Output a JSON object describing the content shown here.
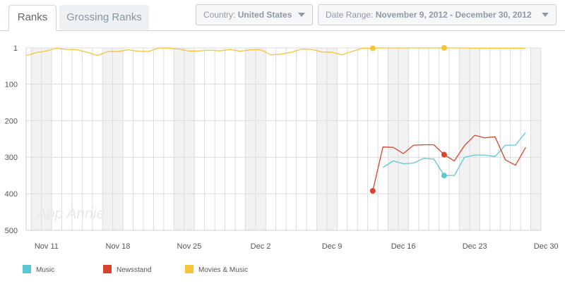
{
  "tabs": {
    "ranks": "Ranks",
    "grossing": "Grossing Ranks"
  },
  "filters": {
    "country_label": "Country:",
    "country_value": "United States",
    "date_label": "Date Range:",
    "date_value": "November 9, 2012 - December 30, 2012"
  },
  "watermark": "App Annie",
  "colors": {
    "music": "#5bc8d4",
    "newsstand": "#d9432b",
    "movies_music": "#f7c43a",
    "band": "#f2f2f2",
    "grid": "#dcdcdc"
  },
  "chart_data": {
    "type": "line",
    "title": "",
    "xlabel": "",
    "ylabel": "",
    "x_start": "2012-11-09",
    "x_end": "2012-12-30",
    "yticks": [
      1,
      100,
      200,
      300,
      400,
      500
    ],
    "ylim": [
      1,
      500
    ],
    "y_reversed": true,
    "xticks": [
      {
        "label": "Nov 11",
        "date": "2012-11-11"
      },
      {
        "label": "Nov 18",
        "date": "2012-11-18"
      },
      {
        "label": "Nov 25",
        "date": "2012-11-25"
      },
      {
        "label": "Dec 2",
        "date": "2012-12-02"
      },
      {
        "label": "Dec 9",
        "date": "2012-12-09"
      },
      {
        "label": "Dec 16",
        "date": "2012-12-16"
      },
      {
        "label": "Dec 23",
        "date": "2012-12-23"
      },
      {
        "label": "Dec 30",
        "date": "2012-12-30"
      }
    ],
    "legend_position": "bottom-left",
    "series": [
      {
        "name": "Music",
        "color": "#5bc8d4",
        "points": [
          [
            "2012-12-14",
            328
          ],
          [
            "2012-12-15",
            310
          ],
          [
            "2012-12-16",
            318
          ],
          [
            "2012-12-17",
            316
          ],
          [
            "2012-12-18",
            303
          ],
          [
            "2012-12-19",
            305
          ],
          [
            "2012-12-20",
            350
          ],
          [
            "2012-12-21",
            350
          ],
          [
            "2012-12-22",
            300
          ],
          [
            "2012-12-23",
            294
          ],
          [
            "2012-12-24",
            294
          ],
          [
            "2012-12-25",
            298
          ],
          [
            "2012-12-26",
            267
          ],
          [
            "2012-12-27",
            267
          ],
          [
            "2012-12-28",
            232
          ]
        ],
        "markers": [
          [
            "2012-12-20",
            350
          ]
        ]
      },
      {
        "name": "Newsstand",
        "color": "#d9432b",
        "points": [
          [
            "2012-12-13",
            392
          ],
          [
            "2012-12-14",
            272
          ],
          [
            "2012-12-15",
            273
          ],
          [
            "2012-12-16",
            290
          ],
          [
            "2012-12-17",
            267
          ],
          [
            "2012-12-18",
            266
          ],
          [
            "2012-12-19",
            266
          ],
          [
            "2012-12-20",
            293
          ],
          [
            "2012-12-21",
            310
          ],
          [
            "2012-12-22",
            268
          ],
          [
            "2012-12-23",
            240
          ],
          [
            "2012-12-24",
            247
          ],
          [
            "2012-12-25",
            244
          ],
          [
            "2012-12-26",
            307
          ],
          [
            "2012-12-27",
            322
          ],
          [
            "2012-12-28",
            273
          ]
        ],
        "markers": [
          [
            "2012-12-13",
            392
          ],
          [
            "2012-12-20",
            293
          ]
        ]
      },
      {
        "name": "Movies & Music",
        "color": "#f7c43a",
        "points": [
          [
            "2012-11-09",
            22
          ],
          [
            "2012-11-10",
            14
          ],
          [
            "2012-11-11",
            9
          ],
          [
            "2012-11-12",
            2
          ],
          [
            "2012-11-13",
            5
          ],
          [
            "2012-11-14",
            6
          ],
          [
            "2012-11-15",
            13
          ],
          [
            "2012-11-16",
            22
          ],
          [
            "2012-11-17",
            11
          ],
          [
            "2012-11-18",
            11
          ],
          [
            "2012-11-19",
            6
          ],
          [
            "2012-11-20",
            10
          ],
          [
            "2012-11-21",
            11
          ],
          [
            "2012-11-22",
            1
          ],
          [
            "2012-11-23",
            2
          ],
          [
            "2012-11-24",
            4
          ],
          [
            "2012-11-25",
            10
          ],
          [
            "2012-11-26",
            9
          ],
          [
            "2012-11-27",
            7
          ],
          [
            "2012-11-28",
            9
          ],
          [
            "2012-11-29",
            5
          ],
          [
            "2012-11-30",
            10
          ],
          [
            "2012-12-01",
            6
          ],
          [
            "2012-12-02",
            6
          ],
          [
            "2012-12-03",
            20
          ],
          [
            "2012-12-04",
            18
          ],
          [
            "2012-12-05",
            13
          ],
          [
            "2012-12-06",
            4
          ],
          [
            "2012-12-07",
            5
          ],
          [
            "2012-12-08",
            12
          ],
          [
            "2012-12-09",
            13
          ],
          [
            "2012-12-10",
            20
          ],
          [
            "2012-12-11",
            10
          ],
          [
            "2012-12-12",
            2
          ],
          [
            "2012-12-13",
            2
          ],
          [
            "2012-12-14",
            1
          ],
          [
            "2012-12-15",
            1
          ],
          [
            "2012-12-16",
            1
          ],
          [
            "2012-12-17",
            1
          ],
          [
            "2012-12-18",
            1
          ],
          [
            "2012-12-19",
            1
          ],
          [
            "2012-12-20",
            1
          ],
          [
            "2012-12-21",
            1
          ],
          [
            "2012-12-22",
            1
          ],
          [
            "2012-12-23",
            2
          ],
          [
            "2012-12-24",
            2
          ],
          [
            "2012-12-25",
            2
          ],
          [
            "2012-12-26",
            2
          ],
          [
            "2012-12-27",
            2
          ],
          [
            "2012-12-28",
            2
          ]
        ],
        "markers": [
          [
            "2012-12-13",
            2
          ],
          [
            "2012-12-20",
            1
          ]
        ]
      }
    ]
  },
  "legend": [
    {
      "label": "Music",
      "color": "#5bc8d4"
    },
    {
      "label": "Newsstand",
      "color": "#d9432b"
    },
    {
      "label": "Movies & Music",
      "color": "#f7c43a"
    }
  ]
}
